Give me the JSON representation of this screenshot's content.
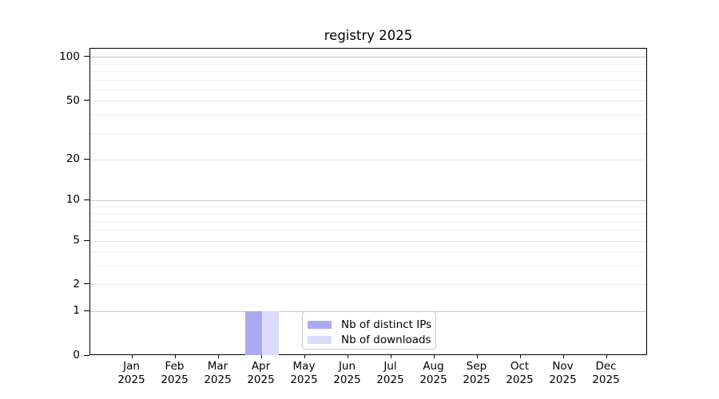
{
  "chart_data": {
    "type": "bar",
    "title": "registry 2025",
    "months": [
      "Jan",
      "Feb",
      "Mar",
      "Apr",
      "May",
      "Jun",
      "Jul",
      "Aug",
      "Sep",
      "Oct",
      "Nov",
      "Dec"
    ],
    "year_label": "2025",
    "series": [
      {
        "name": "Nb of distinct IPs",
        "color": "#aaaaf2",
        "values": [
          0,
          0,
          0,
          1,
          0,
          0,
          0,
          0,
          0,
          0,
          0,
          0
        ]
      },
      {
        "name": "Nb of downloads",
        "color": "#dbdbfa",
        "values": [
          0,
          0,
          0,
          1,
          0,
          0,
          0,
          0,
          0,
          0,
          0,
          0
        ]
      }
    ],
    "y_axis": {
      "scale": "log-above-1-linear-below-1",
      "ticks": [
        0,
        1,
        2,
        5,
        10,
        20,
        50,
        100
      ],
      "minor_gridlines": [
        3,
        4,
        6,
        7,
        8,
        9,
        30,
        40,
        60,
        70,
        80,
        90
      ],
      "range_max": 115
    },
    "x_axis": {
      "label_format": "month-over-year"
    },
    "legend": {
      "position": "lower center of plot"
    },
    "grid": "horizontal only"
  },
  "colors": {
    "background": "#ffffff",
    "spine": "#000000",
    "grid_decade": "#c8c8c8",
    "grid_mid": "#e6e6e6",
    "grid_minor": "#f0f0f0",
    "text": "#000000",
    "legend_border": "#cccccc"
  }
}
